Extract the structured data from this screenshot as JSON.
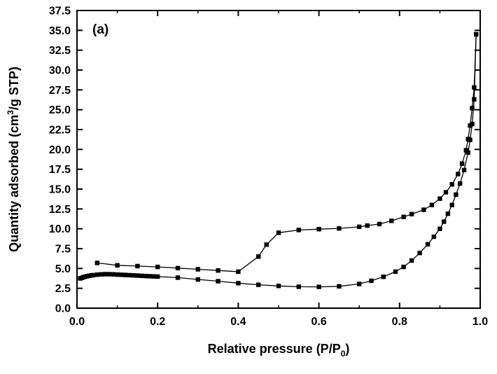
{
  "panel_label": "(a)",
  "chart_data": {
    "type": "line",
    "title": "",
    "panel_label": "(a)",
    "xlabel": {
      "pre": "Relative pressure (P/P",
      "sub": "0",
      "post": ")"
    },
    "ylabel": {
      "pre": "Quantity adsorbed (cm",
      "sup": "3",
      "post": "/g STP)"
    },
    "xlim": [
      0.0,
      1.0
    ],
    "ylim": [
      0.0,
      37.5
    ],
    "grid": false,
    "legend": "none",
    "marker": "filled-square",
    "line_color": "#000000",
    "x_ticks": {
      "values": [
        0.0,
        0.2,
        0.4,
        0.6,
        0.8,
        1.0
      ],
      "labels": [
        "0.0",
        "0.2",
        "0.4",
        "0.6",
        "0.8",
        "1.0"
      ]
    },
    "x_minor_ticks": [
      0.1,
      0.3,
      0.5,
      0.7,
      0.9
    ],
    "y_ticks": {
      "values": [
        0.0,
        2.5,
        5.0,
        7.5,
        10.0,
        12.5,
        15.0,
        17.5,
        20.0,
        22.5,
        25.0,
        27.5,
        30.0,
        32.5,
        35.0,
        37.5
      ],
      "labels": [
        "0.0",
        "2.5",
        "5.0",
        "7.5",
        "10.0",
        "12.5",
        "15.0",
        "17.5",
        "20.0",
        "22.5",
        "25.0",
        "27.5",
        "30.0",
        "32.5",
        "35.0",
        "37.5"
      ]
    },
    "series": [
      {
        "name": "adsorption-branch",
        "points": [
          [
            0.008,
            3.75
          ],
          [
            0.012,
            3.82
          ],
          [
            0.016,
            3.9
          ],
          [
            0.02,
            3.96
          ],
          [
            0.025,
            4.02
          ],
          [
            0.03,
            4.08
          ],
          [
            0.035,
            4.12
          ],
          [
            0.04,
            4.16
          ],
          [
            0.05,
            4.22
          ],
          [
            0.06,
            4.26
          ],
          [
            0.07,
            4.28
          ],
          [
            0.08,
            4.28
          ],
          [
            0.09,
            4.26
          ],
          [
            0.1,
            4.23
          ],
          [
            0.11,
            4.21
          ],
          [
            0.12,
            4.18
          ],
          [
            0.13,
            4.16
          ],
          [
            0.14,
            4.13
          ],
          [
            0.15,
            4.1
          ],
          [
            0.16,
            4.08
          ],
          [
            0.17,
            4.05
          ],
          [
            0.18,
            4.02
          ],
          [
            0.19,
            4.0
          ],
          [
            0.2,
            3.98
          ],
          [
            0.25,
            3.85
          ],
          [
            0.3,
            3.62
          ],
          [
            0.35,
            3.4
          ],
          [
            0.4,
            3.15
          ],
          [
            0.45,
            2.95
          ],
          [
            0.5,
            2.8
          ],
          [
            0.55,
            2.7
          ],
          [
            0.6,
            2.68
          ],
          [
            0.65,
            2.75
          ],
          [
            0.7,
            3.05
          ],
          [
            0.73,
            3.45
          ],
          [
            0.76,
            3.95
          ],
          [
            0.79,
            4.6
          ],
          [
            0.81,
            5.2
          ],
          [
            0.83,
            6.0
          ],
          [
            0.85,
            6.95
          ],
          [
            0.87,
            8.05
          ],
          [
            0.885,
            9.0
          ],
          [
            0.9,
            10.0
          ],
          [
            0.91,
            10.9
          ],
          [
            0.92,
            11.9
          ],
          [
            0.93,
            13.0
          ],
          [
            0.94,
            14.3
          ],
          [
            0.95,
            15.7
          ],
          [
            0.96,
            17.4
          ],
          [
            0.97,
            19.6
          ],
          [
            0.975,
            21.2
          ],
          [
            0.98,
            23.2
          ],
          [
            0.985,
            26.3
          ],
          [
            0.99,
            34.5
          ]
        ]
      },
      {
        "name": "desorption-branch",
        "points": [
          [
            0.05,
            5.7
          ],
          [
            0.1,
            5.4
          ],
          [
            0.15,
            5.3
          ],
          [
            0.2,
            5.2
          ],
          [
            0.25,
            5.05
          ],
          [
            0.3,
            4.9
          ],
          [
            0.35,
            4.75
          ],
          [
            0.4,
            4.6
          ],
          [
            0.45,
            6.5
          ],
          [
            0.47,
            8.0
          ],
          [
            0.5,
            9.5
          ],
          [
            0.55,
            9.85
          ],
          [
            0.6,
            9.95
          ],
          [
            0.65,
            10.05
          ],
          [
            0.7,
            10.25
          ],
          [
            0.72,
            10.4
          ],
          [
            0.75,
            10.6
          ],
          [
            0.78,
            11.0
          ],
          [
            0.81,
            11.5
          ],
          [
            0.83,
            11.85
          ],
          [
            0.86,
            12.4
          ],
          [
            0.88,
            13.0
          ],
          [
            0.9,
            13.8
          ],
          [
            0.915,
            14.6
          ],
          [
            0.93,
            15.6
          ],
          [
            0.945,
            16.9
          ],
          [
            0.955,
            18.2
          ],
          [
            0.965,
            19.9
          ],
          [
            0.97,
            21.3
          ],
          [
            0.975,
            23.0
          ],
          [
            0.98,
            25.2
          ],
          [
            0.985,
            27.8
          ],
          [
            0.99,
            34.5
          ]
        ]
      }
    ]
  }
}
